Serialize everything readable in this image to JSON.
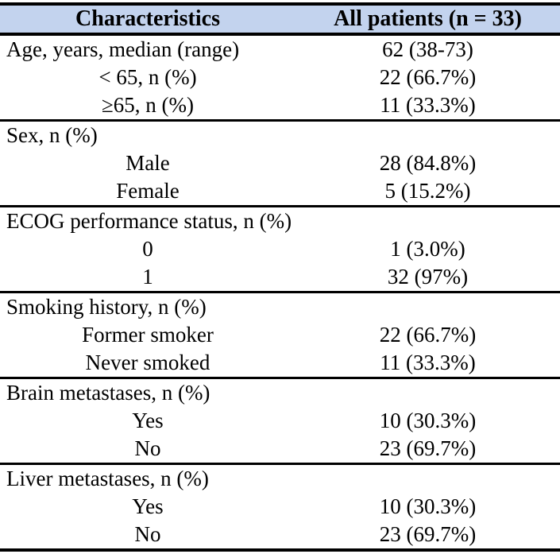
{
  "colors": {
    "header_bg": "#c3d3ee",
    "rule": "#000000",
    "text": "#000000",
    "page_bg": "#ffffff"
  },
  "table": {
    "header": {
      "col1": "Characteristics",
      "col2": "All patients (n = 33)"
    },
    "sections": [
      {
        "name": "age",
        "rows": [
          {
            "label": "Age, years, median (range)",
            "value": "62 (38-73)"
          },
          {
            "label": "< 65, n (%)",
            "value": "22 (66.7%)"
          },
          {
            "label": "≥65, n (%)",
            "value": "11 (33.3%)"
          }
        ]
      },
      {
        "name": "sex",
        "rows": [
          {
            "label": "Sex, n (%)",
            "value": ""
          },
          {
            "label": "Male",
            "value": "28 (84.8%)"
          },
          {
            "label": "Female",
            "value": "5 (15.2%)"
          }
        ]
      },
      {
        "name": "ecog",
        "rows": [
          {
            "label": "ECOG performance status, n (%)",
            "value": ""
          },
          {
            "label": "0",
            "value": "1 (3.0%)"
          },
          {
            "label": "1",
            "value": "32 (97%)"
          }
        ]
      },
      {
        "name": "smoking",
        "rows": [
          {
            "label": "Smoking history, n (%)",
            "value": ""
          },
          {
            "label": "Former smoker",
            "value": "22 (66.7%)"
          },
          {
            "label": "Never smoked",
            "value": "11 (33.3%)"
          }
        ]
      },
      {
        "name": "brain-metastases",
        "rows": [
          {
            "label": "Brain metastases, n (%)",
            "value": ""
          },
          {
            "label": "Yes",
            "value": "10 (30.3%)"
          },
          {
            "label": "No",
            "value": "23 (69.7%)"
          }
        ]
      },
      {
        "name": "liver-metastases",
        "rows": [
          {
            "label": "Liver metastases, n (%)",
            "value": ""
          },
          {
            "label": "Yes",
            "value": "10 (30.3%)"
          },
          {
            "label": "No",
            "value": "23 (69.7%)"
          }
        ]
      }
    ]
  }
}
